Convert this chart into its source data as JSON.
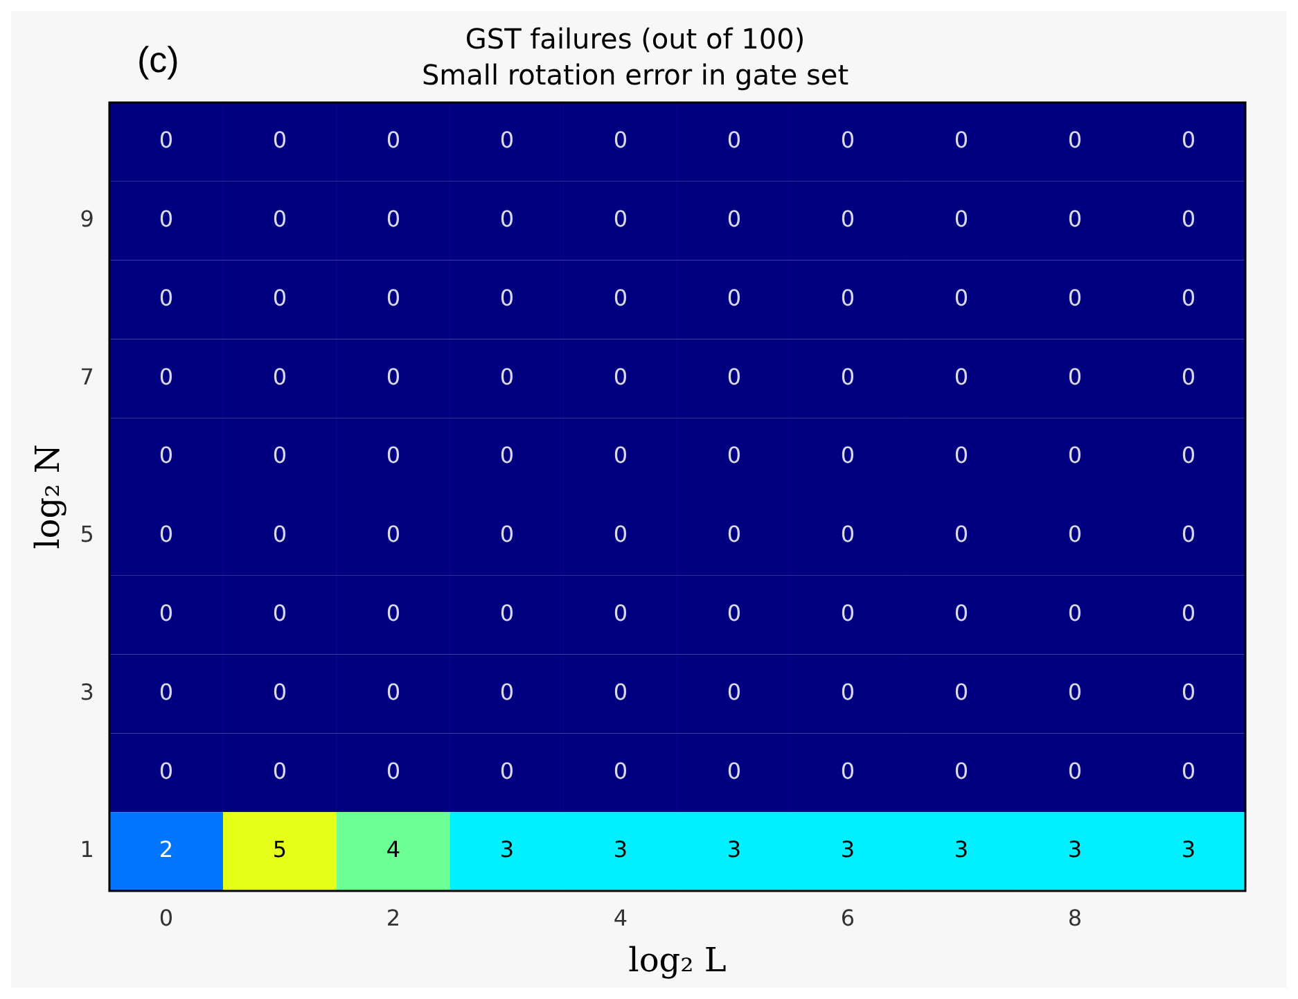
{
  "chart_data": {
    "type": "heatmap",
    "title": "GST failures (out of 100)",
    "subtitle": "Small rotation error in gate set",
    "xlabel": "log₂ L",
    "ylabel": "log₂ N",
    "annotations": [
      "(c)"
    ],
    "data_labels": true,
    "categories": [
      "0",
      null,
      "2",
      null,
      "4",
      null,
      "6",
      null,
      "8",
      null
    ],
    "y_categories": [
      null,
      "9",
      null,
      "7",
      null,
      "5",
      null,
      "3",
      null,
      "1"
    ],
    "cells": [
      [
        0,
        0,
        0,
        0,
        0,
        0,
        0,
        0,
        0,
        0
      ],
      [
        0,
        0,
        0,
        0,
        0,
        0,
        0,
        0,
        0,
        0
      ],
      [
        0,
        0,
        0,
        0,
        0,
        0,
        0,
        0,
        0,
        0
      ],
      [
        0,
        0,
        0,
        0,
        0,
        0,
        0,
        0,
        0,
        0
      ],
      [
        0,
        0,
        0,
        0,
        0,
        0,
        0,
        0,
        0,
        0
      ],
      [
        0,
        0,
        0,
        0,
        0,
        0,
        0,
        0,
        0,
        0
      ],
      [
        0,
        0,
        0,
        0,
        0,
        0,
        0,
        0,
        0,
        0
      ],
      [
        0,
        0,
        0,
        0,
        0,
        0,
        0,
        0,
        0,
        0
      ],
      [
        0,
        0,
        0,
        0,
        0,
        0,
        0,
        0,
        0,
        0
      ],
      [
        2,
        5,
        4,
        3,
        3,
        3,
        3,
        3,
        3,
        3
      ]
    ]
  }
}
